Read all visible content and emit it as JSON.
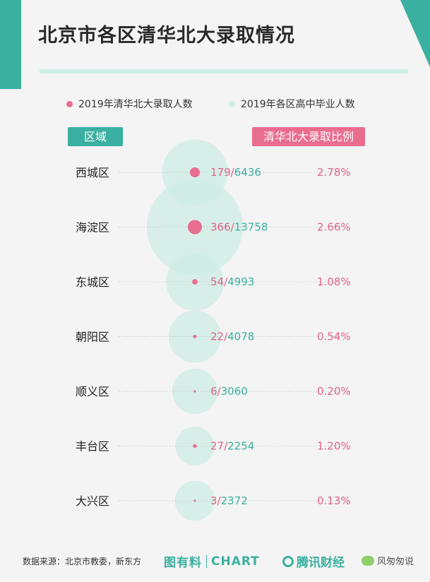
{
  "title": "北京市各区清华北大录取情况",
  "legend": {
    "admitted": "2019年清华北大录取人数",
    "graduates": "2019年各区高中毕业人数"
  },
  "headers": {
    "region": "区域",
    "ratio": "清华北大录取比例"
  },
  "colors": {
    "teal": "#3ab0a0",
    "pink": "#e86d8f",
    "bubble": "#cdeee4"
  },
  "chart_data": {
    "type": "bubble",
    "categories": [
      "西城区",
      "海淀区",
      "东城区",
      "朝阳区",
      "顺义区",
      "丰台区",
      "大兴区"
    ],
    "series": [
      {
        "name": "2019年清华北大录取人数",
        "values": [
          179,
          366,
          54,
          22,
          6,
          27,
          3
        ]
      },
      {
        "name": "2019年各区高中毕业人数",
        "values": [
          6436,
          13758,
          4993,
          4078,
          3060,
          2254,
          2372
        ]
      }
    ],
    "ratios": [
      "2.78%",
      "2.66%",
      "1.08%",
      "0.54%",
      "0.20%",
      "1.20%",
      "0.13%"
    ]
  },
  "footer": {
    "source": "数据来源：北京市教委，新东方",
    "brand_a": "图有料",
    "brand_b": "CHART",
    "brand_c": "腾讯财经",
    "wechat": "风匆匆说"
  }
}
